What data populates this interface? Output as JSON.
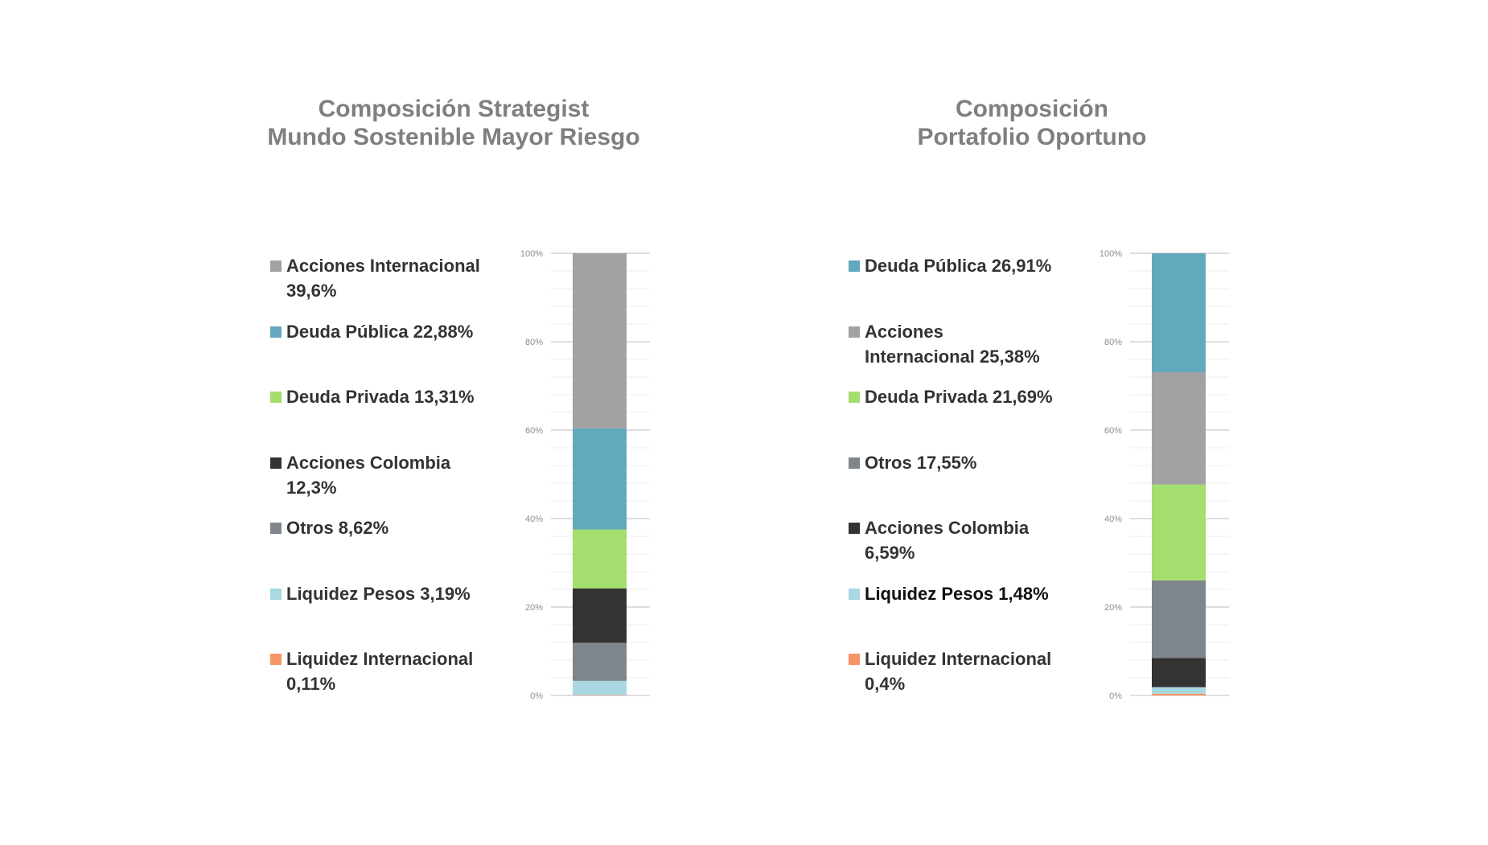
{
  "chart_data": [
    {
      "type": "bar",
      "stacked": true,
      "title_lines": [
        "Composición Strategist",
        "Mundo Sostenible Mayor Riesgo"
      ],
      "ylim": [
        0,
        100
      ],
      "y_ticks": [
        "0%",
        "20%",
        "40%",
        "60%",
        "80%",
        "100%"
      ],
      "grid": true,
      "series": [
        {
          "name": "Liquidez Internacional",
          "label_lines": [
            "Liquidez Internacional",
            "0,11%"
          ],
          "value": 0.11,
          "color": "#f79466"
        },
        {
          "name": "Liquidez Pesos",
          "label_lines": [
            "Liquidez Pesos 3,19%"
          ],
          "value": 3.19,
          "color": "#a8d8e2"
        },
        {
          "name": "Otros",
          "label_lines": [
            "Otros 8,62%"
          ],
          "value": 8.62,
          "color": "#7e858b"
        },
        {
          "name": "Acciones Colombia",
          "label_lines": [
            "Acciones Colombia",
            "12,3%"
          ],
          "value": 12.3,
          "color": "#333333"
        },
        {
          "name": "Deuda Privada",
          "label_lines": [
            "Deuda Privada 13,31%"
          ],
          "value": 13.31,
          "color": "#a3de6e"
        },
        {
          "name": "Deuda Pública",
          "label_lines": [
            "Deuda Pública 22,88%"
          ],
          "value": 22.88,
          "color": "#62a9bd"
        },
        {
          "name": "Acciones Internacional",
          "label_lines": [
            "Acciones Internacional",
            "39,6%"
          ],
          "value": 39.6,
          "color": "#a3a2a3"
        }
      ],
      "legend_order": [
        "Acciones Internacional",
        "Deuda Pública",
        "Deuda Privada",
        "Acciones Colombia",
        "Otros",
        "Liquidez Pesos",
        "Liquidez Internacional"
      ]
    },
    {
      "type": "bar",
      "stacked": true,
      "title_lines": [
        "Composición",
        "Portafolio Oportuno"
      ],
      "ylim": [
        0,
        100
      ],
      "y_ticks": [
        "0%",
        "20%",
        "40%",
        "60%",
        "80%",
        "100%"
      ],
      "grid": true,
      "series": [
        {
          "name": "Liquidez Internacional",
          "label_lines": [
            "Liquidez Internacional",
            "0,4%"
          ],
          "value": 0.4,
          "color": "#f79466"
        },
        {
          "name": "Liquidez Pesos",
          "label_lines": [
            "Liquidez Pesos 1,48%"
          ],
          "value": 1.48,
          "color": "#a8d8e2"
        },
        {
          "name": "Acciones Colombia",
          "label_lines": [
            "Acciones Colombia",
            "6,59%"
          ],
          "value": 6.59,
          "color": "#333333"
        },
        {
          "name": "Otros",
          "label_lines": [
            "Otros 17,55%"
          ],
          "value": 17.55,
          "color": "#7e858b"
        },
        {
          "name": "Deuda Privada",
          "label_lines": [
            "Deuda Privada 21,69%"
          ],
          "value": 21.69,
          "color": "#a3de6e"
        },
        {
          "name": "Acciones Internacional",
          "label_lines": [
            "Acciones",
            "Internacional 25,38%"
          ],
          "value": 25.38,
          "color": "#a3a2a3"
        },
        {
          "name": "Deuda Pública",
          "label_lines": [
            "Deuda Pública 26,91%"
          ],
          "value": 26.91,
          "color": "#62a9bd"
        }
      ],
      "legend_order": [
        "Deuda Pública",
        "Acciones Internacional",
        "Deuda Privada",
        "Otros",
        "Acciones Colombia",
        "Liquidez Pesos",
        "Liquidez Internacional"
      ]
    }
  ]
}
